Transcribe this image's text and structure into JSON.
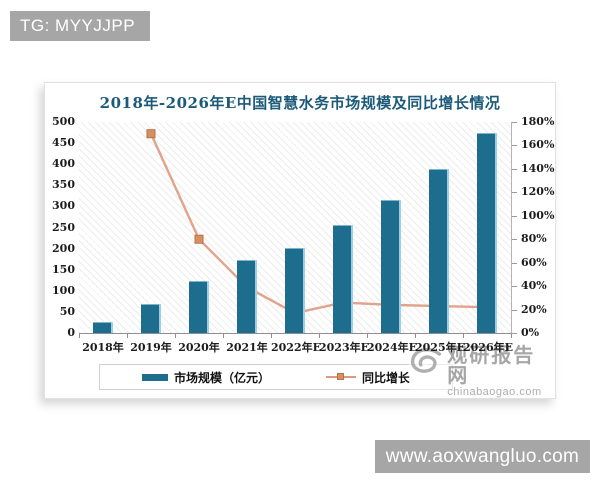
{
  "page": {
    "header_tag": "TG: MYYJJPP",
    "footer_url": "www.aoxwangluo.com"
  },
  "watermark": {
    "name": "观研报告网",
    "domain": "chinabaogao.com"
  },
  "colors": {
    "bar_fill": "#1d6d8e",
    "bar_highlight": "#a5d5e6",
    "line": "#e2a28b",
    "marker_fill": "#d9905f",
    "marker_border": "#b5714a",
    "title_text": "#1b5a78",
    "gray_bar": "#a6a6a6",
    "watermark_gray": "#a2a2a2"
  },
  "chart_data": {
    "type": "bar",
    "title": "2018年-2026年E中国智慧水务市场规模及同比增长情况",
    "categories": [
      "2018年",
      "2019年",
      "2020年",
      "2021年",
      "2022年E",
      "2023年E",
      "2024年E",
      "2025年E",
      "2026年E"
    ],
    "series": [
      {
        "name": "市场规模（亿元）",
        "type": "bar",
        "axis": "left",
        "values": [
          25,
          68,
          124,
          173,
          201,
          255,
          315,
          388,
          474
        ]
      },
      {
        "name": "同比增长",
        "type": "line",
        "axis": "right",
        "unit": "%",
        "values": [
          null,
          170,
          80,
          39,
          17,
          26,
          24,
          23,
          22
        ]
      }
    ],
    "left_axis": {
      "min": 0,
      "max": 500,
      "step": 50,
      "tick_labels": [
        "0",
        "50",
        "100",
        "150",
        "200",
        "250",
        "300",
        "350",
        "400",
        "450",
        "500"
      ]
    },
    "right_axis": {
      "min": 0,
      "max": 180,
      "step": 20,
      "tick_labels": [
        "0%",
        "20%",
        "40%",
        "60%",
        "80%",
        "100%",
        "120%",
        "140%",
        "160%",
        "180%"
      ]
    },
    "legend_position": "bottom",
    "grid": false,
    "plot_background": "diagonal-hatch"
  }
}
